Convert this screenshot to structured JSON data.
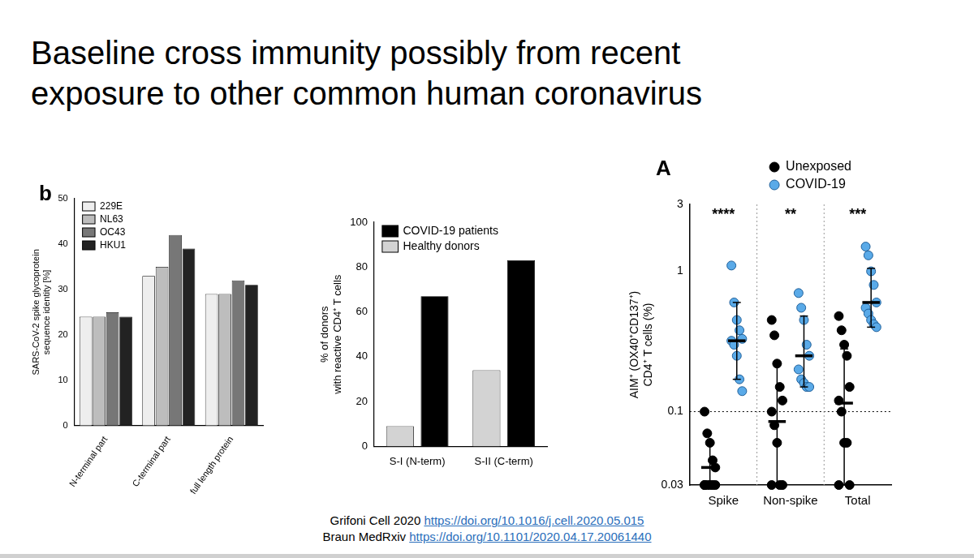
{
  "slide": {
    "title": [
      "Baseline cross immunity possibly from recent",
      "exposure to other common human coronavirus"
    ],
    "references": [
      {
        "text": "Grifoni Cell 2020",
        "url": "https://doi.org/10.1016/j.cell.2020.05.015"
      },
      {
        "text": "Braun MedRxiv",
        "url": "https://doi.org/10.1101/2020.04.17.20061440"
      }
    ]
  },
  "chart_data": [
    {
      "type": "bar",
      "panel_label": "b",
      "y_label": [
        "SARS-CoV-2 spike glycoprotein",
        "sequence identity [%]"
      ],
      "categories": [
        "N-terminal part",
        "C-terminal part",
        "full length protein"
      ],
      "series": [
        {
          "name": "229E",
          "color": "#eeeeee",
          "values": [
            24,
            33,
            29
          ]
        },
        {
          "name": "NL63",
          "color": "#bdbdbd",
          "values": [
            24,
            35,
            29
          ]
        },
        {
          "name": "OC43",
          "color": "#777777",
          "values": [
            25,
            42,
            32
          ]
        },
        {
          "name": "HKU1",
          "color": "#222222",
          "values": [
            24,
            39,
            31
          ]
        }
      ],
      "ylim": [
        0,
        50
      ],
      "yticks": [
        0,
        10,
        20,
        30,
        40,
        50
      ],
      "grid": false,
      "legend": "top-left"
    },
    {
      "type": "bar",
      "y_label": [
        "% of donors",
        "with reactive CD4⁺ T cells"
      ],
      "categories": [
        "S-I (N-term)",
        "S-II (C-term)"
      ],
      "series": [
        {
          "name": "Healthy donors",
          "color": "#d3d3d3",
          "values": [
            9,
            34
          ]
        },
        {
          "name": "COVID-19 patients",
          "color": "#000000",
          "values": [
            67,
            83
          ]
        }
      ],
      "ylim": [
        0,
        100
      ],
      "yticks": [
        0,
        20,
        40,
        60,
        80,
        100
      ],
      "grid": false,
      "legend": "top-left"
    },
    {
      "type": "scatter",
      "panel_label": "A",
      "y_label": [
        "AIM⁺ (OX40⁺CD137⁺)",
        "CD4⁺ T cells (%)"
      ],
      "categories": [
        "Spike",
        "Non-spike",
        "Total"
      ],
      "annotations": [
        "****",
        "**",
        "***"
      ],
      "reference_line": 0.1,
      "series": [
        {
          "name": "Unexposed",
          "color": "#000000",
          "values": [
            [
              0.1,
              0.07,
              0.06,
              0.045,
              0.04,
              0.03,
              0.03,
              0.03,
              0.03,
              0.03,
              0.03
            ],
            [
              0.45,
              0.35,
              0.22,
              0.15,
              0.12,
              0.1,
              0.08,
              0.06,
              0.03,
              0.03,
              0.03
            ],
            [
              0.48,
              0.38,
              0.3,
              0.25,
              0.15,
              0.12,
              0.1,
              0.06,
              0.06,
              0.03,
              0.03
            ]
          ],
          "mean": [
            0.04,
            0.085,
            0.115
          ],
          "error_low": [
            0.03,
            0.03,
            0.03
          ],
          "error_high": [
            0.06,
            0.22,
            0.28
          ]
        },
        {
          "name": "COVID-19",
          "color": "#5aaae8",
          "values": [
            [
              1.1,
              0.6,
              0.45,
              0.38,
              0.33,
              0.32,
              0.3,
              0.25,
              0.17,
              0.14
            ],
            [
              0.7,
              0.55,
              0.45,
              0.3,
              0.25,
              0.2,
              0.17,
              0.16,
              0.15,
              0.15
            ],
            [
              1.5,
              1.3,
              1.0,
              0.8,
              0.6,
              0.55,
              0.5,
              0.45,
              0.42,
              0.4
            ]
          ],
          "mean": [
            0.32,
            0.25,
            0.6
          ],
          "error_low": [
            0.17,
            0.15,
            0.4
          ],
          "error_high": [
            0.6,
            0.48,
            1.05
          ]
        }
      ],
      "ylim": [
        0.03,
        3
      ],
      "yticks": [
        0.03,
        0.1,
        1,
        3
      ],
      "log": "y",
      "grid": false,
      "legend": "top-right"
    }
  ]
}
